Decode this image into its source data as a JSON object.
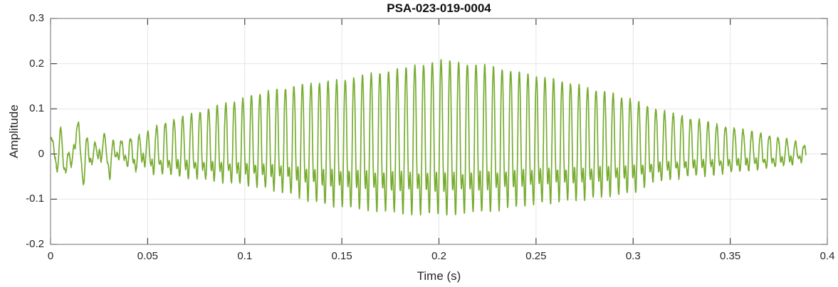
{
  "figure": {
    "kind": "matlab-style waveform plot"
  },
  "style": {
    "background": "#ffffff",
    "axis_color": "#888888",
    "tick_color": "#444444",
    "grid_color": "#e6e6e6",
    "text_color": "#262626",
    "title_color": "#0f0f0f",
    "line_color": "#77AC30",
    "line_width": 1.7
  },
  "chart_data": {
    "type": "line",
    "title": "PSA-023-019-0004",
    "xlabel": "Time (s)",
    "ylabel": "Amplitude",
    "xlim": [
      0,
      0.4
    ],
    "ylim": [
      -0.2,
      0.3
    ],
    "grid": true,
    "legend": "none",
    "x_ticks": [
      0,
      0.05,
      0.1,
      0.15,
      0.2,
      0.25,
      0.3,
      0.35,
      0.4
    ],
    "x_tick_labels": [
      "0",
      "0.05",
      "0.1",
      "0.15",
      "0.2",
      "0.25",
      "0.3",
      "0.35",
      "0.4"
    ],
    "y_ticks": [
      -0.2,
      -0.1,
      0,
      0.1,
      0.2,
      0.3
    ],
    "y_tick_labels": [
      "-0.2",
      "-0.1",
      "0",
      "0.1",
      "0.2",
      "0.3"
    ],
    "series": [
      {
        "name": "PSA-023-019-0004 waveform",
        "description": "Amplitude-modulated oscillatory burst: noisy low-amplitude onset (~±0.05 to 0.06 s), ~225 Hz carrier, asymmetric envelope peaking at +0.235 / -0.178 near t = 0.2 s, decaying tail ending at t ≈ 0.389 s",
        "carrier_hz": 225,
        "duration_s": 0.389,
        "noise_blend_until_s": 0.058,
        "peak_value": 0.235,
        "min_value": -0.178,
        "envelope_t": [
          0,
          0.006,
          0.012,
          0.02,
          0.03,
          0.04,
          0.05,
          0.06,
          0.07,
          0.08,
          0.09,
          0.1,
          0.11,
          0.12,
          0.13,
          0.14,
          0.15,
          0.16,
          0.17,
          0.18,
          0.19,
          0.2,
          0.21,
          0.22,
          0.23,
          0.24,
          0.25,
          0.26,
          0.27,
          0.28,
          0.29,
          0.3,
          0.31,
          0.32,
          0.33,
          0.34,
          0.35,
          0.36,
          0.37,
          0.38,
          0.389
        ],
        "envelope_upper": [
          0.05,
          0.07,
          0.08,
          0.065,
          0.055,
          0.048,
          0.065,
          0.08,
          0.095,
          0.112,
          0.126,
          0.14,
          0.155,
          0.165,
          0.174,
          0.18,
          0.186,
          0.196,
          0.205,
          0.213,
          0.224,
          0.235,
          0.231,
          0.225,
          0.216,
          0.206,
          0.196,
          0.186,
          0.175,
          0.162,
          0.15,
          0.135,
          0.115,
          0.101,
          0.09,
          0.077,
          0.066,
          0.056,
          0.046,
          0.035,
          0.02
        ],
        "envelope_lower": [
          0.045,
          0.06,
          0.065,
          0.06,
          0.05,
          0.045,
          0.055,
          0.06,
          0.068,
          0.075,
          0.082,
          0.09,
          0.1,
          0.11,
          0.13,
          0.148,
          0.155,
          0.162,
          0.168,
          0.172,
          0.175,
          0.178,
          0.175,
          0.17,
          0.164,
          0.155,
          0.146,
          0.14,
          0.135,
          0.128,
          0.121,
          0.113,
          0.085,
          0.072,
          0.066,
          0.06,
          0.054,
          0.048,
          0.041,
          0.031,
          0.018
        ]
      }
    ]
  }
}
